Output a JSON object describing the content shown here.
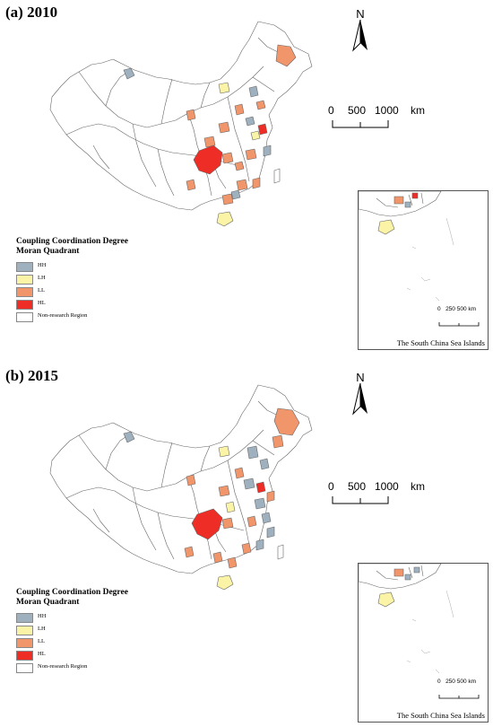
{
  "panels": [
    {
      "title": "(a) 2010",
      "north": "N",
      "scale": {
        "labels": [
          "0",
          "500",
          "1000"
        ],
        "unit": "km"
      },
      "inset": {
        "caption": "The South China Sea Islands",
        "scale": [
          "0",
          "250",
          "500"
        ],
        "unit": "km"
      },
      "legend": {
        "title": "Coupling Coordination Degree",
        "subtitle": "Moran Quadrant",
        "items": [
          "HH",
          "LH",
          "LL",
          "HL",
          "Non-research Region"
        ]
      }
    },
    {
      "title": "(b) 2015",
      "north": "N",
      "scale": {
        "labels": [
          "0",
          "500",
          "1000"
        ],
        "unit": "km"
      },
      "inset": {
        "caption": "The South China Sea Islands",
        "scale": [
          "0",
          "250",
          "500"
        ],
        "unit": "km"
      },
      "legend": {
        "title": "Coupling Coordination Degree",
        "subtitle": "Moran Quadrant",
        "items": [
          "HH",
          "LH",
          "LL",
          "HL",
          "Non-research Region"
        ]
      }
    }
  ],
  "colors": {
    "HH": "#9fb1bf",
    "LH": "#fbf3a6",
    "LL": "#f1956a",
    "HL": "#ee2d26",
    "non_research": "#ffffff",
    "boundary": "#666666"
  },
  "map_regions": [
    {
      "panel": 0,
      "quadrant": "HH",
      "region": "Urumqi"
    },
    {
      "panel": 0,
      "quadrant": "LL",
      "region": "Harbin"
    },
    {
      "panel": 0,
      "quadrant": "LH",
      "region": "Baotou"
    },
    {
      "panel": 0,
      "quadrant": "HL",
      "region": "Chongqing"
    },
    {
      "panel": 0,
      "quadrant": "LH",
      "region": "Hainan"
    },
    {
      "panel": 1,
      "quadrant": "HH",
      "region": "Urumqi"
    },
    {
      "panel": 1,
      "quadrant": "LL",
      "region": "Harbin"
    },
    {
      "panel": 1,
      "quadrant": "LH",
      "region": "Baotou"
    },
    {
      "panel": 1,
      "quadrant": "HL",
      "region": "Chongqing"
    },
    {
      "panel": 1,
      "quadrant": "LH",
      "region": "Hainan"
    }
  ]
}
